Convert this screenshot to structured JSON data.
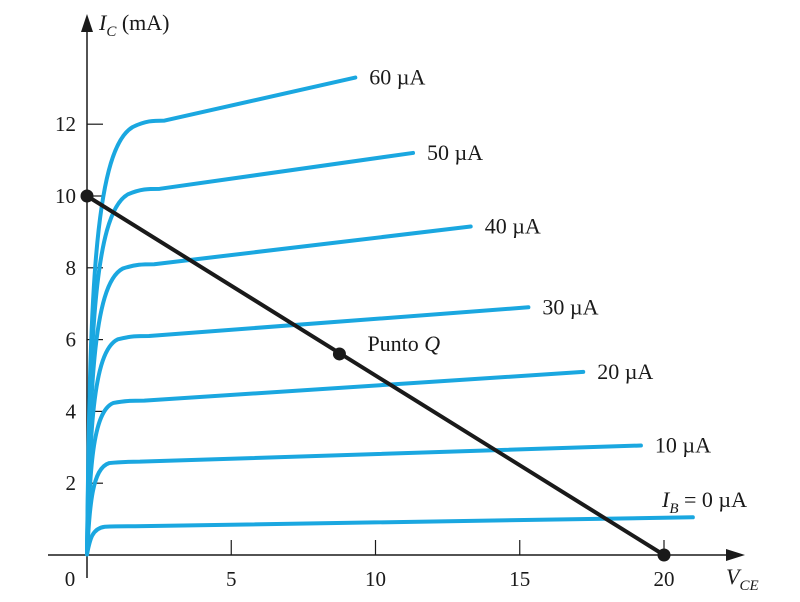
{
  "chart_data": {
    "type": "line",
    "xlabel": {
      "main": "V",
      "sub": "CE"
    },
    "ylabel": {
      "main": "I",
      "sub": "C",
      "unit": "(mA)"
    },
    "xlim": [
      0,
      22
    ],
    "ylim": [
      0,
      14.5
    ],
    "x_ticks": [
      5,
      10,
      15,
      20
    ],
    "y_ticks": [
      2,
      4,
      6,
      8,
      10,
      12
    ],
    "origin_label": "0",
    "series": [
      {
        "name": "0 µA",
        "label_prefix": "I",
        "label_sub": "B",
        "label_suffix": " = 0 µA",
        "sat": 0.8,
        "end": [
          21,
          1.05
        ]
      },
      {
        "name": "10 µA",
        "label": "10 µA",
        "sat": 2.6,
        "end": [
          19.2,
          3.05
        ]
      },
      {
        "name": "20 µA",
        "label": "20 µA",
        "sat": 4.3,
        "end": [
          17.2,
          5.1
        ]
      },
      {
        "name": "30 µA",
        "label": "30 µA",
        "sat": 6.1,
        "end": [
          15.3,
          6.9
        ]
      },
      {
        "name": "40 µA",
        "label": "40 µA",
        "sat": 8.1,
        "end": [
          13.3,
          9.15
        ]
      },
      {
        "name": "50 µA",
        "label": "50 µA",
        "sat": 10.2,
        "end": [
          11.3,
          11.2
        ]
      },
      {
        "name": "60 µA",
        "label": "60 µA",
        "sat": 12.1,
        "end": [
          9.3,
          13.3
        ]
      }
    ],
    "load_line": {
      "from": [
        0,
        10
      ],
      "to": [
        20,
        0
      ]
    },
    "points": [
      {
        "x": 0,
        "y": 10
      },
      {
        "x": 8.75,
        "y": 5.6,
        "label": "Punto",
        "label_italic": "Q"
      },
      {
        "x": 20,
        "y": 0
      }
    ]
  },
  "colors": {
    "curve": "#1aa7e0",
    "line": "#1a1a1a"
  }
}
